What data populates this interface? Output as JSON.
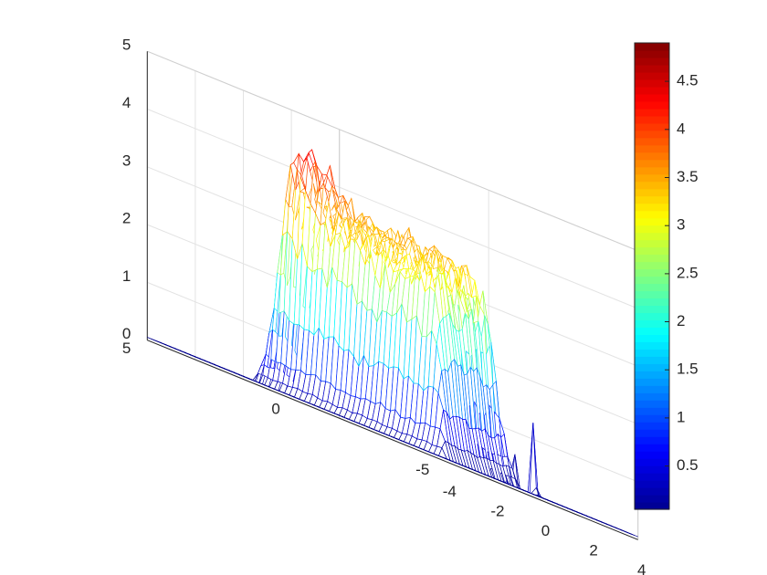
{
  "chart_data": {
    "type": "surface",
    "title": "",
    "xlabel": "",
    "ylabel": "",
    "zlabel": "",
    "grid": true,
    "colormap": "jet",
    "colormap_stops": [
      "#00008F",
      "#0000FF",
      "#0080FF",
      "#00FFFF",
      "#80FF80",
      "#FFFF00",
      "#FF8000",
      "#FF0000",
      "#800000"
    ],
    "xlim": [
      -4,
      4
    ],
    "ylim": [
      -5,
      5
    ],
    "zlim": [
      0,
      5
    ],
    "x_ticks": [
      {
        "value": -4,
        "label": "-4"
      },
      {
        "value": -2,
        "label": "-2"
      },
      {
        "value": 0,
        "label": "0"
      },
      {
        "value": 2,
        "label": "2"
      },
      {
        "value": 4,
        "label": "4"
      }
    ],
    "y_ticks": [
      {
        "value": -5,
        "label": "-5"
      },
      {
        "value": 0,
        "label": "0"
      },
      {
        "value": 5,
        "label": "5"
      }
    ],
    "z_ticks": [
      {
        "value": 0,
        "label": "0"
      },
      {
        "value": 1,
        "label": "1"
      },
      {
        "value": 2,
        "label": "2"
      },
      {
        "value": 3,
        "label": "3"
      },
      {
        "value": 4,
        "label": "4"
      },
      {
        "value": 5,
        "label": "5"
      }
    ],
    "colorbar": {
      "range": [
        0.05,
        4.9
      ],
      "ticks": [
        {
          "value": 0.5,
          "label": "0.5"
        },
        {
          "value": 1,
          "label": "1"
        },
        {
          "value": 1.5,
          "label": "1.5"
        },
        {
          "value": 2,
          "label": "2"
        },
        {
          "value": 2.5,
          "label": "2.5"
        },
        {
          "value": 3,
          "label": "3"
        },
        {
          "value": 3.5,
          "label": "3.5"
        },
        {
          "value": 4,
          "label": "4"
        },
        {
          "value": 4.5,
          "label": "4.5"
        }
      ]
    },
    "surface": {
      "base_value": 0.05,
      "mesh_x": [
        -4,
        4
      ],
      "mesh_y": [
        -5,
        5
      ],
      "plateau": {
        "x_range": [
          -3.0,
          -0.6
        ],
        "y_range": [
          -4.0,
          1.5
        ],
        "peak_max": 4.85,
        "typical_top": 3.3
      },
      "spikes": [
        {
          "x": -0.3,
          "y": -1.2,
          "z": 3.25
        },
        {
          "x": -0.1,
          "y": -1.8,
          "z": 3.0
        },
        {
          "x": 0.1,
          "y": -2.4,
          "z": 2.7
        },
        {
          "x": 0.3,
          "y": -3.0,
          "z": 2.45
        },
        {
          "x": 0.5,
          "y": -3.6,
          "z": 2.3
        },
        {
          "x": 0.7,
          "y": -4.2,
          "z": 2.2
        }
      ]
    }
  }
}
